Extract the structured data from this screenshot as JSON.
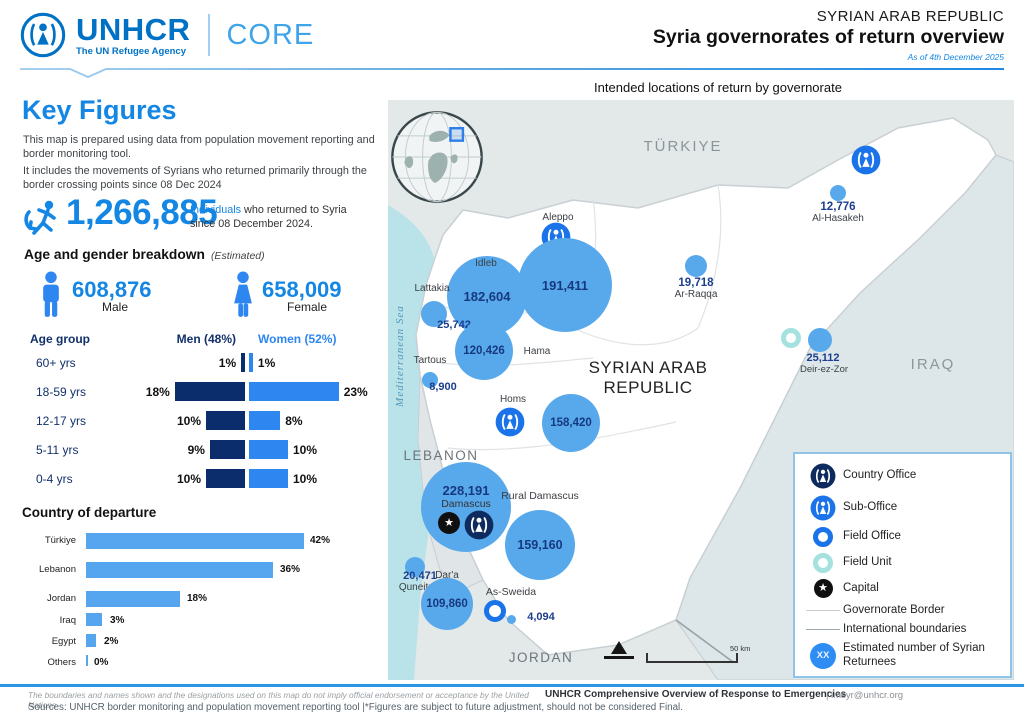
{
  "header": {
    "logo": {
      "org": "UNHCR",
      "tagline": "The UN Refugee Agency",
      "product": "CORE"
    },
    "country": "SYRIAN ARAB REPUBLIC",
    "title": "Syria governorates of return overview",
    "as_of": "As of 4th December 2025"
  },
  "key_figures": {
    "title": "Key Figures",
    "desc1": "This map is prepared using data from population movement reporting and border monitoring tool.",
    "desc2": "It includes the movements of Syrians who returned primarily through the border crossing points since 08 Dec 2024",
    "total": "1,266,885",
    "total_label_highlight": "Individuals",
    "total_label_rest": " who returned to Syria since 08 December 2024."
  },
  "age_gender": {
    "title": "Age and gender breakdown",
    "subtitle": "(Estimated)",
    "male_count": "608,876",
    "male_label": "Male",
    "female_count": "658,009",
    "female_label": "Female",
    "col_age": "Age group",
    "col_men": "Men (48%)",
    "col_women": "Women (52%)",
    "rows": [
      {
        "group": "60+ yrs",
        "men": 1,
        "women": 1,
        "men_label": "1%",
        "women_label": "1%"
      },
      {
        "group": "18-59 yrs",
        "men": 18,
        "women": 23,
        "men_label": "18%",
        "women_label": "23%"
      },
      {
        "group": "12-17 yrs",
        "men": 10,
        "women": 8,
        "men_label": "10%",
        "women_label": "8%"
      },
      {
        "group": "5-11 yrs",
        "men": 9,
        "women": 10,
        "men_label": "9%",
        "women_label": "10%"
      },
      {
        "group": "0-4 yrs",
        "men": 10,
        "women": 10,
        "men_label": "10%",
        "women_label": "10%"
      }
    ]
  },
  "departure": {
    "title": "Country of departure",
    "rows": [
      {
        "country": "Türkiye",
        "value": 42,
        "label": "42%"
      },
      {
        "country": "Lebanon",
        "value": 36,
        "label": "36%"
      },
      {
        "country": "Jordan",
        "value": 18,
        "label": "18%"
      },
      {
        "country": "Iraq",
        "value": 3,
        "label": "3%"
      },
      {
        "country": "Egypt",
        "value": 2,
        "label": "2%"
      },
      {
        "country": "Others",
        "value": 0,
        "label": "0%"
      }
    ]
  },
  "map": {
    "title": "Intended locations of return by governorate",
    "sea": "Mediterranean Sea",
    "country_turkiye": "TÜRKIYE",
    "country_iraq": "IRAQ",
    "country_lebanon": "LEBANON",
    "country_jordan": "JORDAN",
    "syria_line1": "SYRIAN ARAB",
    "syria_line2": "REPUBLIC",
    "scale_label": "50 km",
    "bubbles": [
      {
        "name": "Aleppo",
        "value": "191,411",
        "office": "sub-office"
      },
      {
        "name": "Idleb",
        "value": "182,604"
      },
      {
        "name": "Lattakia",
        "value": "25,742"
      },
      {
        "name": "Tartous",
        "value": "8,900"
      },
      {
        "name": "Hama",
        "value": "120,426"
      },
      {
        "name": "Homs",
        "value": "158,420",
        "office": "sub-office"
      },
      {
        "name": "Al-Hasakeh",
        "value": "12,776",
        "office": "sub-office"
      },
      {
        "name": "Ar-Raqqa",
        "value": "19,718"
      },
      {
        "name": "Deir-ez-Zor",
        "value": "25,112",
        "office": "field-unit"
      },
      {
        "name": "Damascus",
        "value": "228,191",
        "office": "country-office",
        "capital": true
      },
      {
        "name": "Rural Damascus",
        "value": "159,160"
      },
      {
        "name": "Quneitra",
        "value": "20,471"
      },
      {
        "name": "Dar'a",
        "value": "109,860"
      },
      {
        "name": "As-Sweida",
        "value": "4,094",
        "office": "field-office"
      }
    ]
  },
  "legend": {
    "items": [
      "Country Office",
      "Sub-Office",
      "Field Office",
      "Field Unit",
      "Capital",
      "Governorate Border",
      "International boundaries",
      "Estimated number of Syrian Returnees"
    ],
    "returnees_symbol": "XX"
  },
  "footer": {
    "disclaimer": "The boundaries and names shown and the designations used on this map do not imply official endorsement or acceptance by the United Nations",
    "brand": "UNHCR Comprehensive Overview of Response to Emergencies",
    "contact": "| imsyr@unhcr.org",
    "sources": "Sources: UNHCR border monitoring and population movement reporting tool  |*Figures are subject to future adjustment, should not be considered Final."
  },
  "chart_data": [
    {
      "type": "bar",
      "title": "Age and gender breakdown (Estimated)",
      "orientation": "population-pyramid",
      "categories": [
        "60+ yrs",
        "18-59 yrs",
        "12-17 yrs",
        "5-11 yrs",
        "0-4 yrs"
      ],
      "series": [
        {
          "name": "Men (48%)",
          "values": [
            1,
            18,
            10,
            9,
            10
          ]
        },
        {
          "name": "Women (52%)",
          "values": [
            1,
            23,
            8,
            10,
            10
          ]
        }
      ],
      "unit": "%",
      "legend_position": "top",
      "grid": false
    },
    {
      "type": "bar",
      "title": "Country of departure",
      "orientation": "horizontal",
      "categories": [
        "Türkiye",
        "Lebanon",
        "Jordan",
        "Iraq",
        "Egypt",
        "Others"
      ],
      "values": [
        42,
        36,
        18,
        3,
        2,
        0
      ],
      "unit": "%",
      "xlim": [
        0,
        45
      ],
      "grid": false
    },
    {
      "type": "map-bubbles",
      "title": "Intended locations of return by governorate",
      "points": [
        {
          "name": "Aleppo",
          "value": 191411
        },
        {
          "name": "Idleb",
          "value": 182604
        },
        {
          "name": "Lattakia",
          "value": 25742
        },
        {
          "name": "Tartous",
          "value": 8900
        },
        {
          "name": "Hama",
          "value": 120426
        },
        {
          "name": "Homs",
          "value": 158420
        },
        {
          "name": "Al-Hasakeh",
          "value": 12776
        },
        {
          "name": "Ar-Raqqa",
          "value": 19718
        },
        {
          "name": "Deir-ez-Zor",
          "value": 25112
        },
        {
          "name": "Damascus",
          "value": 228191
        },
        {
          "name": "Rural Damascus",
          "value": 159160
        },
        {
          "name": "Quneitra",
          "value": 20471
        },
        {
          "name": "Dar'a",
          "value": 109860
        },
        {
          "name": "As-Sweida",
          "value": 4094
        }
      ]
    }
  ]
}
